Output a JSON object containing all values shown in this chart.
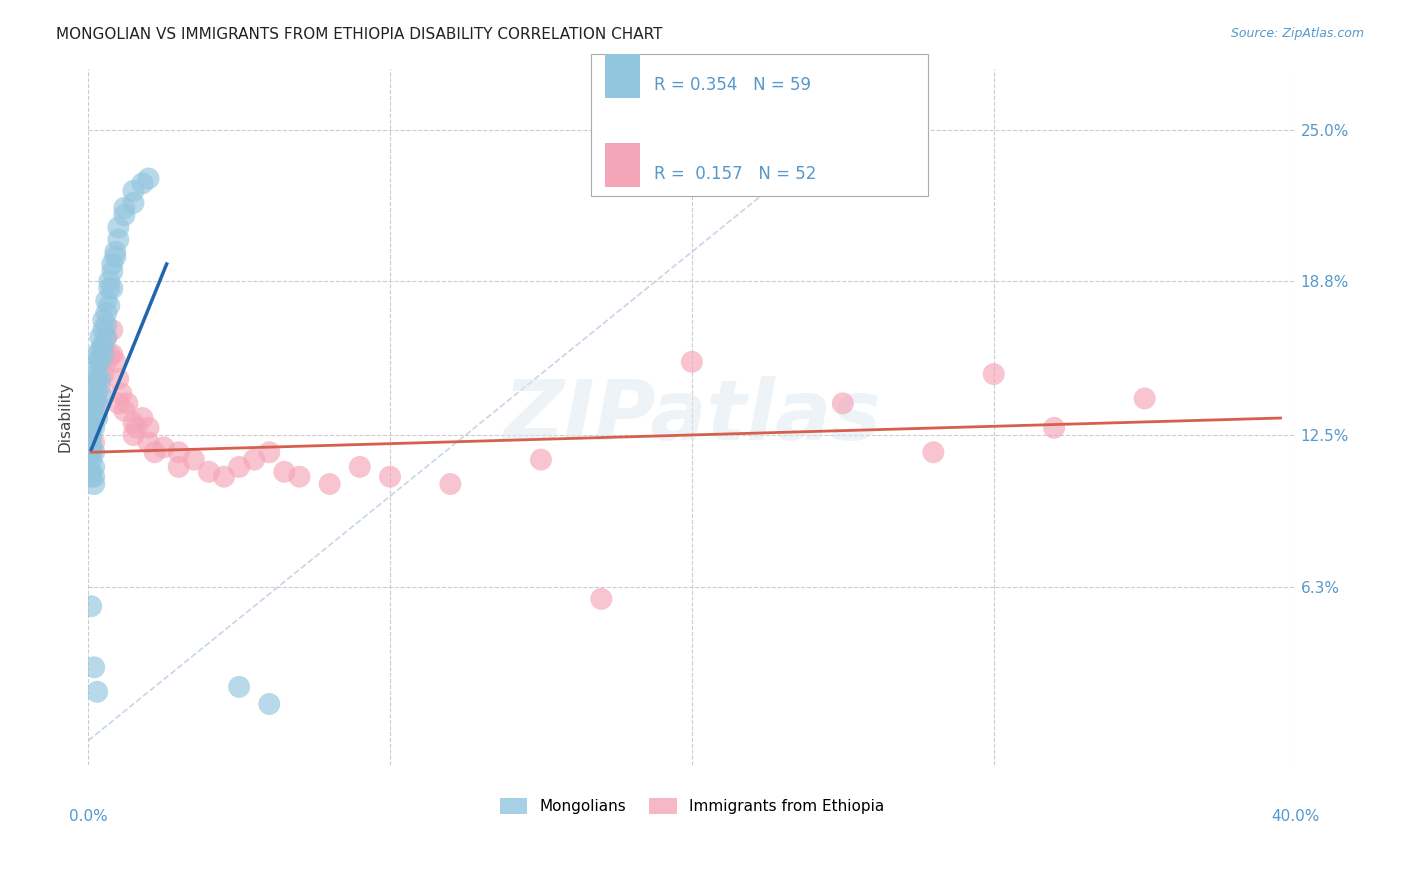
{
  "title": "MONGOLIAN VS IMMIGRANTS FROM ETHIOPIA DISABILITY CORRELATION CHART",
  "source": "Source: ZipAtlas.com",
  "ylabel": "Disability",
  "ytick_labels": [
    "6.3%",
    "12.5%",
    "18.8%",
    "25.0%"
  ],
  "ytick_values": [
    0.063,
    0.125,
    0.188,
    0.25
  ],
  "xlim": [
    0.0,
    0.4
  ],
  "ylim": [
    -0.01,
    0.275
  ],
  "mongolian_color": "#92c5de",
  "ethiopia_color": "#f4a5b8",
  "trend_mongolian_color": "#2166ac",
  "trend_ethiopia_color": "#d6604d",
  "diagonal_color": "#b0c4de",
  "background_color": "#ffffff",
  "grid_color": "#cccccc",
  "mongolian_x": [
    0.001,
    0.001,
    0.001,
    0.001,
    0.001,
    0.001,
    0.001,
    0.001,
    0.001,
    0.001,
    0.002,
    0.002,
    0.002,
    0.002,
    0.002,
    0.002,
    0.002,
    0.002,
    0.002,
    0.003,
    0.003,
    0.003,
    0.003,
    0.003,
    0.003,
    0.003,
    0.004,
    0.004,
    0.004,
    0.004,
    0.004,
    0.005,
    0.005,
    0.005,
    0.005,
    0.006,
    0.006,
    0.006,
    0.006,
    0.007,
    0.007,
    0.007,
    0.008,
    0.008,
    0.008,
    0.009,
    0.009,
    0.01,
    0.01,
    0.012,
    0.012,
    0.015,
    0.015,
    0.018,
    0.02,
    0.001,
    0.002,
    0.003,
    0.05,
    0.06
  ],
  "mongolian_y": [
    0.12,
    0.125,
    0.115,
    0.13,
    0.118,
    0.122,
    0.128,
    0.11,
    0.135,
    0.108,
    0.14,
    0.132,
    0.145,
    0.128,
    0.138,
    0.118,
    0.112,
    0.108,
    0.105,
    0.15,
    0.155,
    0.148,
    0.158,
    0.142,
    0.138,
    0.132,
    0.16,
    0.165,
    0.155,
    0.148,
    0.142,
    0.168,
    0.172,
    0.158,
    0.162,
    0.175,
    0.18,
    0.165,
    0.17,
    0.185,
    0.188,
    0.178,
    0.192,
    0.195,
    0.185,
    0.2,
    0.198,
    0.205,
    0.21,
    0.215,
    0.218,
    0.22,
    0.225,
    0.228,
    0.23,
    0.055,
    0.03,
    0.02,
    0.022,
    0.015
  ],
  "ethiopia_x": [
    0.001,
    0.001,
    0.002,
    0.002,
    0.002,
    0.003,
    0.003,
    0.004,
    0.004,
    0.005,
    0.005,
    0.006,
    0.006,
    0.007,
    0.008,
    0.008,
    0.009,
    0.01,
    0.01,
    0.011,
    0.012,
    0.013,
    0.015,
    0.015,
    0.016,
    0.018,
    0.02,
    0.02,
    0.022,
    0.025,
    0.03,
    0.03,
    0.035,
    0.04,
    0.045,
    0.05,
    0.055,
    0.06,
    0.065,
    0.07,
    0.08,
    0.09,
    0.1,
    0.12,
    0.15,
    0.2,
    0.25,
    0.3,
    0.32,
    0.35,
    0.28,
    0.17
  ],
  "ethiopia_y": [
    0.128,
    0.12,
    0.14,
    0.132,
    0.122,
    0.148,
    0.138,
    0.155,
    0.145,
    0.16,
    0.15,
    0.165,
    0.155,
    0.158,
    0.168,
    0.158,
    0.155,
    0.148,
    0.138,
    0.142,
    0.135,
    0.138,
    0.13,
    0.125,
    0.128,
    0.132,
    0.122,
    0.128,
    0.118,
    0.12,
    0.112,
    0.118,
    0.115,
    0.11,
    0.108,
    0.112,
    0.115,
    0.118,
    0.11,
    0.108,
    0.105,
    0.112,
    0.108,
    0.105,
    0.115,
    0.155,
    0.138,
    0.15,
    0.128,
    0.14,
    0.118,
    0.058
  ],
  "blue_trend_x0": 0.001,
  "blue_trend_x1": 0.026,
  "blue_trend_y0": 0.119,
  "blue_trend_y1": 0.195,
  "pink_trend_x0": 0.001,
  "pink_trend_x1": 0.395,
  "pink_trend_y0": 0.118,
  "pink_trend_y1": 0.132
}
